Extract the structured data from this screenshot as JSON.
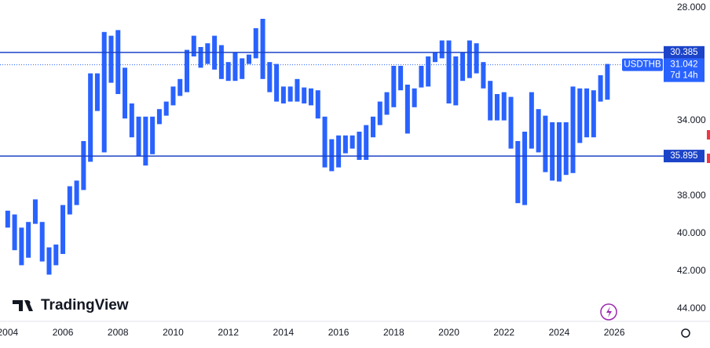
{
  "chart_data": {
    "type": "range_bar",
    "branding": "TradingView",
    "countdown": "7d 14h",
    "invert_scale": true,
    "xlim": [
      2003.72,
      2027.79
    ],
    "ylim": [
      27.6,
      44.6
    ],
    "xticks": [
      2004,
      2006,
      2008,
      2010,
      2012,
      2014,
      2016,
      2018,
      2020,
      2022,
      2024,
      2026
    ],
    "yticks": [
      {
        "value": 28,
        "label": "28.000"
      },
      {
        "value": 34,
        "label": "34.000"
      },
      {
        "value": 38,
        "label": "38.000"
      },
      {
        "value": 40,
        "label": "40.000"
      },
      {
        "value": 42,
        "label": "42.000"
      },
      {
        "value": 44,
        "label": "44.000"
      }
    ],
    "hlines": [
      30.385,
      35.895
    ],
    "hline_color": "#1c44c8",
    "last": 31.042,
    "series": [
      {
        "name": "USDTHB",
        "color": "#2962ff",
        "x": [
          2004,
          2004.25,
          2004.5,
          2004.75,
          2005,
          2005.25,
          2005.5,
          2005.75,
          2006,
          2006.25,
          2006.5,
          2006.75,
          2007,
          2007.25,
          2007.5,
          2007.75,
          2008,
          2008.25,
          2008.5,
          2008.75,
          2009,
          2009.25,
          2009.5,
          2009.75,
          2010,
          2010.25,
          2010.5,
          2010.75,
          2011,
          2011.25,
          2011.5,
          2011.75,
          2012,
          2012.25,
          2012.5,
          2012.75,
          2013,
          2013.25,
          2013.5,
          2013.75,
          2014,
          2014.25,
          2014.5,
          2014.75,
          2015,
          2015.25,
          2015.5,
          2015.75,
          2016,
          2016.25,
          2016.5,
          2016.75,
          2017,
          2017.25,
          2017.5,
          2017.75,
          2018,
          2018.25,
          2018.5,
          2018.75,
          2019,
          2019.25,
          2019.5,
          2019.75,
          2020,
          2020.25,
          2020.5,
          2020.75,
          2021,
          2021.25,
          2021.5,
          2021.75,
          2022,
          2022.25,
          2022.5,
          2022.75,
          2023,
          2023.25,
          2023.5,
          2023.75,
          2024,
          2024.25,
          2024.5,
          2024.75,
          2025,
          2025.25,
          2025.5,
          2025.75
        ],
        "low": [
          38.8,
          39.0,
          39.7,
          39.4,
          38.2,
          39.4,
          40.75,
          40.6,
          38.5,
          37.5,
          37.2,
          35.1,
          31.5,
          31.5,
          29.3,
          29.5,
          29.2,
          31.2,
          33.1,
          33.8,
          33.8,
          33.8,
          33.4,
          33.0,
          32.2,
          31.8,
          30.25,
          29.5,
          30.1,
          29.9,
          29.5,
          30.0,
          30.9,
          30.4,
          30.7,
          30.5,
          29.1,
          28.6,
          30.9,
          31.0,
          32.2,
          32.2,
          31.8,
          32.25,
          32.3,
          32.4,
          33.8,
          35.0,
          34.8,
          34.8,
          34.8,
          34.6,
          34.25,
          33.8,
          33.0,
          32.5,
          31.1,
          31.1,
          32.1,
          32.3,
          31.1,
          30.6,
          30.4,
          29.75,
          29.75,
          30.6,
          30.4,
          29.75,
          29.9,
          30.9,
          31.9,
          32.6,
          32.5,
          32.75,
          35.1,
          34.6,
          32.5,
          33.4,
          33.75,
          34.1,
          34.1,
          34.1,
          32.2,
          32.3,
          32.3,
          32.4,
          31.6,
          31.0
        ],
        "high": [
          39.7,
          40.9,
          41.7,
          41.3,
          39.5,
          41.5,
          42.2,
          41.7,
          41.1,
          39.0,
          38.5,
          37.7,
          36.2,
          33.5,
          35.7,
          32.0,
          32.6,
          33.9,
          34.9,
          35.9,
          36.4,
          35.8,
          34.2,
          33.75,
          33.2,
          32.7,
          32.5,
          30.6,
          31.2,
          31.0,
          31.3,
          31.8,
          31.9,
          31.9,
          31.8,
          31.0,
          30.7,
          31.8,
          32.5,
          33.0,
          33.1,
          33.0,
          33.0,
          33.1,
          33.2,
          33.9,
          36.5,
          36.7,
          36.5,
          35.75,
          35.5,
          36.1,
          36.1,
          34.9,
          34.25,
          33.7,
          33.3,
          32.4,
          34.7,
          33.3,
          32.25,
          32.2,
          30.9,
          30.7,
          33.1,
          33.2,
          31.9,
          31.75,
          31.5,
          32.3,
          34.0,
          34.0,
          34.0,
          35.5,
          38.4,
          38.5,
          35.5,
          35.7,
          36.75,
          37.2,
          37.25,
          36.9,
          36.8,
          35.2,
          34.9,
          34.9,
          33.0,
          32.9
        ]
      }
    ]
  }
}
